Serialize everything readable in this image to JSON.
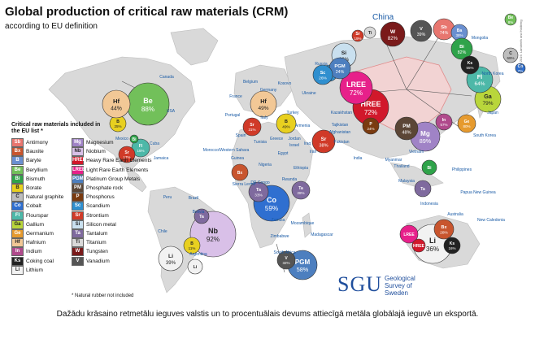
{
  "title": "Global production of critical raw materials (CRM)",
  "subtitle": "according to EU definition",
  "caption": "Dažādu krāsaino retmetālu ieguves valstis un to procentuālais devums attiecīgā metāla globālajā ieguvē un eksportā.",
  "logo": {
    "mark": "SGU",
    "name": "Geological Survey of Sweden"
  },
  "side_credit": "© SGU 2016. Lamberth and Hallberg",
  "highlight_country": "China",
  "legend": {
    "title": "Critical raw materials included in the EU list *",
    "note": "* Natural rubber not included",
    "items": [
      {
        "code": "Sb",
        "name": "Antimony",
        "color": "#e8766f"
      },
      {
        "code": "Bx",
        "name": "Bauxite",
        "color": "#c8552e"
      },
      {
        "code": "B",
        "name": "Baryte",
        "color": "#6a8fd0"
      },
      {
        "code": "Be",
        "name": "Beryllium",
        "color": "#72c05a"
      },
      {
        "code": "Bi",
        "name": "Bismuth",
        "color": "#2fa34a"
      },
      {
        "code": "B",
        "name": "Borate",
        "color": "#e8d020"
      },
      {
        "code": "C",
        "name": "Natural graphite",
        "color": "#bdbdbd"
      },
      {
        "code": "Co",
        "name": "Cobalt",
        "color": "#2f6fd0"
      },
      {
        "code": "Fl",
        "name": "Flourspar",
        "color": "#4db8a8"
      },
      {
        "code": "Ga",
        "name": "Gallium",
        "color": "#b9d63b"
      },
      {
        "code": "Ge",
        "name": "Germanium",
        "color": "#e69a2e"
      },
      {
        "code": "Hf",
        "name": "Hafnium",
        "color": "#f2c896"
      },
      {
        "code": "In",
        "name": "Indium",
        "color": "#b04a8c"
      },
      {
        "code": "Ks",
        "name": "Coking coal",
        "color": "#222222"
      },
      {
        "code": "Li",
        "name": "Lithium",
        "color": "#f2f2f2"
      },
      {
        "code": "Mg",
        "name": "Magnesium",
        "color": "#a083c6"
      },
      {
        "code": "Nb",
        "name": "Niobium",
        "color": "#d9c0e8"
      },
      {
        "code": "HREE",
        "name": "Heavy Rare Earth Elements",
        "color": "#d1182b"
      },
      {
        "code": "LREE",
        "name": "Light Rare Earth Elements",
        "color": "#e7208a"
      },
      {
        "code": "PGM",
        "name": "Platinum Group Metals",
        "color": "#4d7fbf"
      },
      {
        "code": "PM",
        "name": "Phosphate rock",
        "color": "#5b4636"
      },
      {
        "code": "P",
        "name": "Phosphorus",
        "color": "#7a3b10"
      },
      {
        "code": "Sc",
        "name": "Scandium",
        "color": "#2f8fcf"
      },
      {
        "code": "Sr",
        "name": "Strontium",
        "color": "#d03a28"
      },
      {
        "code": "Si",
        "name": "Silicon metal",
        "color": "#c9e0ef"
      },
      {
        "code": "Ta",
        "name": "Tantalum",
        "color": "#7f6a9e"
      },
      {
        "code": "Ti",
        "name": "Titanium",
        "color": "#d9d9d9"
      },
      {
        "code": "W",
        "name": "Tungsten",
        "color": "#7a1a1a"
      },
      {
        "code": "V",
        "name": "Vanadium",
        "color": "#555555"
      }
    ]
  },
  "countries": [
    "Canada",
    "USA",
    "Mexico",
    "Cuba",
    "Jamaica",
    "Peru",
    "Brazil",
    "Bolivia",
    "Chile",
    "Argentina",
    "France",
    "Portugal",
    "Spain",
    "Belgium",
    "Germany",
    "Kosovo",
    "Greece",
    "Italy",
    "Turkey",
    "Armenia",
    "Ukraine",
    "Russia",
    "Morocco/Western Sahara",
    "Tunisia",
    "Egypt",
    "Iraq",
    "Iran",
    "Jordan",
    "Israel",
    "Kazakhstan",
    "Tajikistan",
    "Afghanistan",
    "Pakistan",
    "India",
    "Mongolia",
    "North Korea",
    "South Korea",
    "Japan",
    "Vietnam",
    "Thailand",
    "Myanmar",
    "Malaysia",
    "Indonesia",
    "Philippines",
    "Papua New Guinea",
    "New Caledonia",
    "Australia",
    "Guinea",
    "Sierra Leone",
    "Nigeria",
    "Ethiopia",
    "Rwanda",
    "DR Congo",
    "Zambia",
    "Zimbabwe",
    "Mozambique",
    "Madagascar",
    "South Africa"
  ],
  "bubbles": [
    {
      "country": "China",
      "label": "HREE",
      "share": "72%",
      "color": "#d1182b"
    },
    {
      "country": "China",
      "label": "LREE",
      "share": "72%",
      "color": "#e7208a"
    },
    {
      "country": "China",
      "label": "W",
      "share": "82%",
      "color": "#7a1a1a"
    },
    {
      "country": "China",
      "label": "V",
      "share": "39%",
      "color": "#555555"
    },
    {
      "country": "China",
      "label": "Sb",
      "share": "74%",
      "color": "#e8766f"
    },
    {
      "country": "China",
      "label": "Ba",
      "share": "38%",
      "color": "#6a8fd0"
    },
    {
      "country": "China",
      "label": "Bi",
      "share": "82%",
      "color": "#2fa34a"
    },
    {
      "country": "China",
      "label": "Si",
      "share": "66%",
      "color": "#c9e0ef"
    },
    {
      "country": "China",
      "label": "Sc",
      "share": "66%",
      "color": "#2f8fcf"
    },
    {
      "country": "China",
      "label": "Ga",
      "share": "79%",
      "color": "#b9d63b"
    },
    {
      "country": "China",
      "label": "Fl",
      "share": "64%",
      "color": "#4db8a8"
    },
    {
      "country": "China",
      "label": "Ks",
      "share": "55%",
      "color": "#222222"
    },
    {
      "country": "China",
      "label": "C",
      "share": "69%",
      "color": "#bdbdbd"
    },
    {
      "country": "China",
      "label": "Mg",
      "share": "89%",
      "color": "#a083c6"
    },
    {
      "country": "China",
      "label": "Ge",
      "share": "80%",
      "color": "#e69a2e"
    },
    {
      "country": "China",
      "label": "P",
      "share": "24%",
      "color": "#7a3b10"
    },
    {
      "country": "China",
      "label": "PM",
      "share": "48%",
      "color": "#5b4636"
    },
    {
      "country": "China",
      "label": "In",
      "share": "57%",
      "color": "#b04a8c"
    },
    {
      "country": "China",
      "label": "Sr",
      "share": "19%",
      "color": "#d03a28"
    },
    {
      "country": "China",
      "label": "Ti",
      "share": "",
      "color": "#d9d9d9"
    },
    {
      "country": "China",
      "label": "Be",
      "share": "8%",
      "color": "#72c05a"
    },
    {
      "country": "China",
      "label": "Co",
      "share": "7%",
      "color": "#2f6fd0"
    },
    {
      "country": "USA",
      "label": "Be",
      "share": "88%",
      "color": "#72c05a"
    },
    {
      "country": "USA",
      "label": "B",
      "share": "25%",
      "color": "#e8d020"
    },
    {
      "country": "USA",
      "label": "Hf",
      "share": "44%",
      "color": "#f2c896"
    },
    {
      "country": "Brazil",
      "label": "Nb",
      "share": "92%",
      "color": "#d9c0e8"
    },
    {
      "country": "Brazil",
      "label": "Ta",
      "share": "",
      "color": "#7f6a9e"
    },
    {
      "country": "DR Congo",
      "label": "Co",
      "share": "59%",
      "color": "#2f6fd0"
    },
    {
      "country": "DR Congo",
      "label": "Ta",
      "share": "33%",
      "color": "#7f6a9e"
    },
    {
      "country": "Rwanda",
      "label": "Ta",
      "share": "28%",
      "color": "#7f6a9e"
    },
    {
      "country": "South Africa",
      "label": "PGM",
      "share": "58%",
      "color": "#4d7fbf"
    },
    {
      "country": "South Africa",
      "label": "V",
      "share": "32%",
      "color": "#555555"
    },
    {
      "country": "Russia",
      "label": "PGM",
      "share": "24%",
      "color": "#4d7fbf"
    },
    {
      "country": "Russia",
      "label": "Sc",
      "share": "26%",
      "color": "#2f8fcf"
    },
    {
      "country": "France",
      "label": "Hf",
      "share": "49%",
      "color": "#f2c896"
    },
    {
      "country": "Spain",
      "label": "Sr",
      "share": "31%",
      "color": "#d03a28"
    },
    {
      "country": "Turkey",
      "label": "B",
      "share": "49%",
      "color": "#e8d020"
    },
    {
      "country": "Iran",
      "label": "Sr",
      "share": "38%",
      "color": "#d03a28"
    },
    {
      "country": "Mexico",
      "label": "Fl",
      "share": "15%",
      "color": "#4db8a8"
    },
    {
      "country": "Mexico",
      "label": "Sr",
      "share": "17%",
      "color": "#d03a28"
    },
    {
      "country": "Mexico",
      "label": "Bi",
      "share": "",
      "color": "#2fa34a"
    },
    {
      "country": "Guinea",
      "label": "Bx",
      "share": "",
      "color": "#c8552e"
    },
    {
      "country": "Chile",
      "label": "Li",
      "share": "39%",
      "color": "#f2f2f2"
    },
    {
      "country": "Chile",
      "label": "B",
      "share": "11%",
      "color": "#e8d020"
    },
    {
      "country": "Australia",
      "label": "Li",
      "share": "36%",
      "color": "#f2f2f2"
    },
    {
      "country": "Australia",
      "label": "Bx",
      "share": "28%",
      "color": "#c8552e"
    },
    {
      "country": "Australia",
      "label": "LREE",
      "share": "",
      "color": "#e7208a"
    },
    {
      "country": "Australia",
      "label": "HREE",
      "share": "",
      "color": "#d1182b"
    },
    {
      "country": "Australia",
      "label": "Ks",
      "share": "16%",
      "color": "#222222"
    },
    {
      "country": "Vietnam",
      "label": "Bi",
      "share": "",
      "color": "#2fa34a"
    },
    {
      "country": "Malaysia",
      "label": "Ta",
      "share": "",
      "color": "#7f6a9e"
    },
    {
      "country": "Argentina",
      "label": "Li",
      "share": "",
      "color": "#f2f2f2"
    }
  ]
}
